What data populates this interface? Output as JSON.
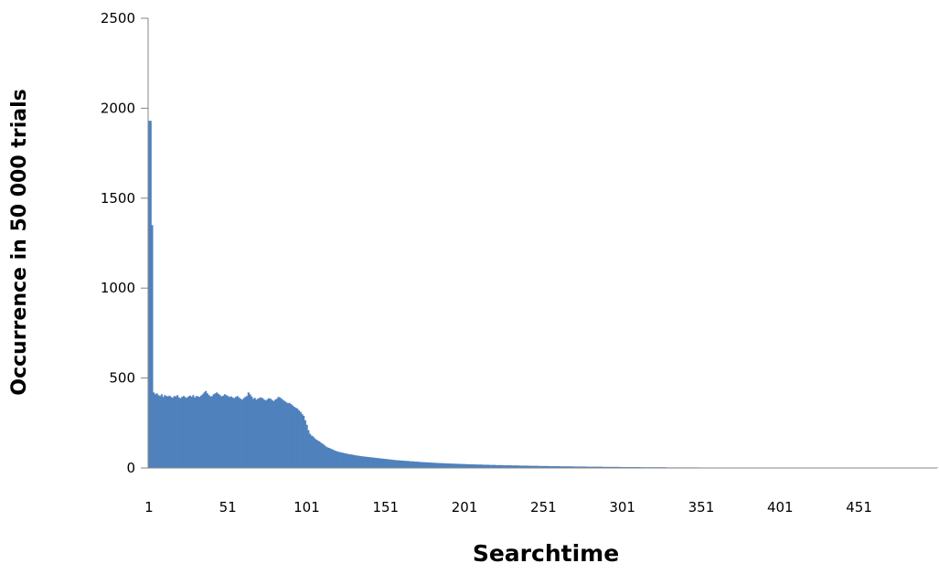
{
  "chart_data": {
    "type": "bar",
    "title": "",
    "xlabel": "Searchtime",
    "ylabel": "Occurrence in 50 000 trials",
    "ylim": [
      0,
      2500
    ],
    "xlim": [
      1,
      500
    ],
    "y_ticks": [
      0,
      500,
      1000,
      1500,
      2000,
      2500
    ],
    "x_ticks": [
      1,
      51,
      101,
      151,
      201,
      251,
      301,
      351,
      401,
      451
    ],
    "grid": false,
    "legend": "none",
    "bar_color": "#4f81bd",
    "series": [
      {
        "values": [
          1930,
          1930,
          1350,
          420,
          410,
          415,
          405,
          400,
          410,
          395,
          405,
          400,
          398,
          402,
          395,
          390,
          400,
          398,
          405,
          392,
          388,
          396,
          400,
          394,
          390,
          398,
          402,
          396,
          405,
          392,
          400,
          398,
          395,
          402,
          410,
          420,
          428,
          415,
          405,
          398,
          400,
          410,
          415,
          420,
          412,
          405,
          398,
          402,
          410,
          405,
          400,
          395,
          398,
          392,
          388,
          395,
          400,
          392,
          385,
          380,
          388,
          395,
          400,
          420,
          410,
          398,
          385,
          390,
          380,
          385,
          390,
          392,
          388,
          380,
          375,
          382,
          388,
          385,
          378,
          372,
          380,
          385,
          395,
          392,
          385,
          378,
          372,
          365,
          360,
          362,
          355,
          348,
          340,
          335,
          330,
          320,
          312,
          300,
          290,
          265,
          240,
          210,
          190,
          180,
          175,
          165,
          158,
          152,
          148,
          140,
          135,
          128,
          120,
          115,
          112,
          108,
          104,
          100,
          96,
          93,
          90,
          88,
          86,
          84,
          82,
          80,
          78,
          76,
          75,
          74,
          72,
          70,
          69,
          68,
          66,
          65,
          64,
          63,
          62,
          61,
          60,
          59,
          58,
          57,
          56,
          55,
          54,
          53,
          52,
          51,
          50,
          49,
          48,
          47,
          46,
          45,
          44,
          43,
          43,
          42,
          41,
          41,
          40,
          39,
          39,
          38,
          37,
          37,
          36,
          35,
          35,
          34,
          33,
          33,
          32,
          32,
          31,
          31,
          30,
          30,
          29,
          29,
          28,
          28,
          27,
          27,
          27,
          26,
          26,
          25,
          25,
          25,
          24,
          24,
          24,
          23,
          23,
          23,
          22,
          22,
          22,
          21,
          21,
          21,
          20,
          20,
          20,
          20,
          19,
          19,
          19,
          19,
          18,
          18,
          18,
          18,
          17,
          17,
          17,
          17,
          16,
          16,
          16,
          16,
          16,
          15,
          15,
          15,
          15,
          15,
          14,
          14,
          14,
          14,
          14,
          13,
          13,
          13,
          13,
          13,
          13,
          12,
          12,
          12,
          12,
          12,
          12,
          11,
          11,
          11,
          11,
          11,
          11,
          11,
          10,
          10,
          10,
          10,
          10,
          10,
          10,
          9,
          9,
          9,
          9,
          9,
          9,
          9,
          9,
          8,
          8,
          8,
          8,
          8,
          8,
          8,
          8,
          8,
          7,
          7,
          7,
          7,
          7,
          7,
          7,
          7,
          7,
          7,
          6,
          6,
          6,
          6,
          6,
          6,
          6,
          6,
          6,
          6,
          6,
          5,
          5,
          5,
          5,
          5,
          5,
          5,
          5,
          5,
          5,
          5,
          5,
          5,
          4,
          4,
          4,
          4,
          4,
          4,
          4,
          4,
          4,
          4,
          4,
          4,
          4,
          4,
          4,
          4,
          3,
          3,
          3,
          3,
          3,
          3,
          3,
          3,
          3,
          3,
          3,
          3,
          3,
          3,
          3,
          3,
          3,
          3,
          3,
          3,
          3,
          2,
          2,
          2,
          2,
          2,
          2,
          2,
          2,
          2,
          2,
          2,
          2,
          2,
          2,
          2,
          2,
          2,
          2,
          2,
          2,
          2,
          2,
          2,
          2,
          2,
          2,
          2,
          2,
          1,
          1,
          1,
          1,
          1,
          1,
          1,
          1,
          1,
          1,
          1,
          1,
          1,
          1,
          1,
          1,
          1,
          1,
          1,
          1,
          1,
          1,
          1,
          1,
          1,
          1,
          1,
          1,
          1,
          1,
          1,
          1,
          1,
          1,
          1,
          1,
          1,
          1,
          1,
          1,
          1,
          1,
          1,
          1,
          1,
          1,
          1,
          1,
          1,
          1,
          1,
          1,
          1,
          1,
          1,
          1,
          1,
          1,
          1,
          1,
          1,
          1,
          1,
          1,
          1,
          1,
          1,
          1,
          1,
          1,
          1,
          1,
          1,
          1,
          1,
          1,
          1,
          1,
          1,
          1,
          1,
          1,
          1,
          1,
          1,
          1,
          1,
          1,
          1,
          1,
          1,
          1,
          1,
          1,
          1,
          1,
          1,
          1,
          1,
          1,
          1,
          1,
          1,
          1,
          1,
          1,
          1,
          1,
          1,
          1,
          1,
          1,
          1,
          1,
          1,
          1,
          1,
          1,
          1,
          1,
          1,
          1,
          1,
          1,
          1,
          1,
          1
        ]
      }
    ]
  }
}
